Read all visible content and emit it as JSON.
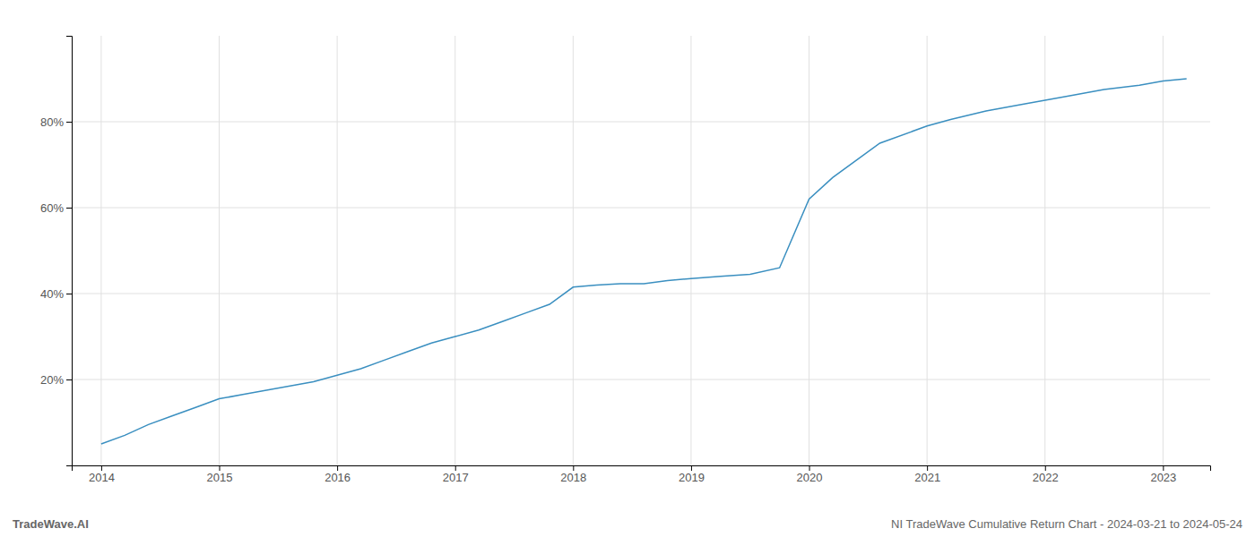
{
  "chart_data": {
    "type": "line",
    "annotations": [
      "TradeWave.AI",
      "NI TradeWave Cumulative Return Chart - 2024-03-21 to 2024-05-24"
    ],
    "x": [
      2014.0,
      2014.2,
      2014.4,
      2014.6,
      2014.8,
      2015.0,
      2015.2,
      2015.4,
      2015.6,
      2015.8,
      2016.0,
      2016.2,
      2016.4,
      2016.6,
      2016.8,
      2017.0,
      2017.2,
      2017.4,
      2017.6,
      2017.8,
      2018.0,
      2018.2,
      2018.4,
      2018.6,
      2018.8,
      2019.0,
      2019.1,
      2019.25,
      2019.5,
      2019.75,
      2020.0,
      2020.2,
      2020.4,
      2020.6,
      2021.0,
      2021.2,
      2021.5,
      2021.8,
      2022.0,
      2022.2,
      2022.5,
      2022.8,
      2023.0,
      2023.2
    ],
    "values": [
      5.0,
      7.0,
      9.5,
      11.5,
      13.5,
      15.5,
      16.5,
      17.5,
      18.5,
      19.5,
      21.0,
      22.5,
      24.5,
      26.5,
      28.5,
      30.0,
      31.5,
      33.5,
      35.5,
      37.5,
      41.5,
      42.0,
      42.3,
      42.3,
      43.0,
      43.5,
      43.7,
      44.0,
      44.5,
      46.0,
      62.0,
      67.0,
      71.0,
      75.0,
      79.0,
      80.5,
      82.5,
      84.0,
      85.0,
      86.0,
      87.5,
      88.5,
      89.5,
      90.0
    ],
    "color": "#3a8fc0",
    "xlim": [
      2013.75,
      2023.4
    ],
    "ylim": [
      0,
      100
    ],
    "xticks": [
      2014,
      2015,
      2016,
      2017,
      2018,
      2019,
      2020,
      2021,
      2022,
      2023
    ],
    "yticks": [
      {
        "value": 20,
        "label": "20%"
      },
      {
        "value": 40,
        "label": "40%"
      },
      {
        "value": 60,
        "label": "60%"
      },
      {
        "value": 80,
        "label": "80%"
      }
    ],
    "grid": true
  }
}
